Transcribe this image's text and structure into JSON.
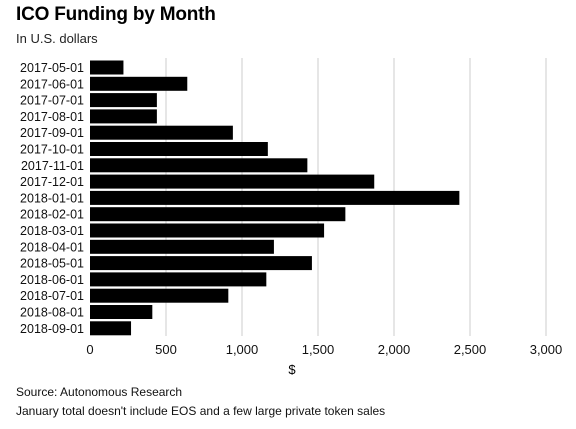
{
  "chart_data": {
    "type": "bar",
    "orientation": "horizontal",
    "title": "ICO Funding by Month",
    "subtitle": "In U.S. dollars",
    "xlabel": "$",
    "ylabel": "",
    "categories": [
      "2017-05-01",
      "2017-06-01",
      "2017-07-01",
      "2017-08-01",
      "2017-09-01",
      "2017-10-01",
      "2017-11-01",
      "2017-12-01",
      "2018-01-01",
      "2018-02-01",
      "2018-03-01",
      "2018-04-01",
      "2018-05-01",
      "2018-06-01",
      "2018-07-01",
      "2018-08-01",
      "2018-09-01"
    ],
    "values": [
      220,
      640,
      440,
      440,
      940,
      1170,
      1430,
      1870,
      2430,
      1680,
      1540,
      1210,
      1460,
      1160,
      910,
      410,
      270
    ],
    "xlim": [
      0,
      3000
    ],
    "xticks": [
      0,
      500,
      1000,
      1500,
      2000,
      2500,
      3000
    ],
    "xtick_labels": [
      "0",
      "500",
      "1,000",
      "1,500",
      "2,000",
      "2,500",
      "3,000"
    ],
    "grid": true,
    "bar_color": "#000000",
    "grid_color": "#cccccc"
  },
  "source": "Source: Autonomous Research",
  "footnote": "January total doesn't include EOS and a few large private token sales"
}
